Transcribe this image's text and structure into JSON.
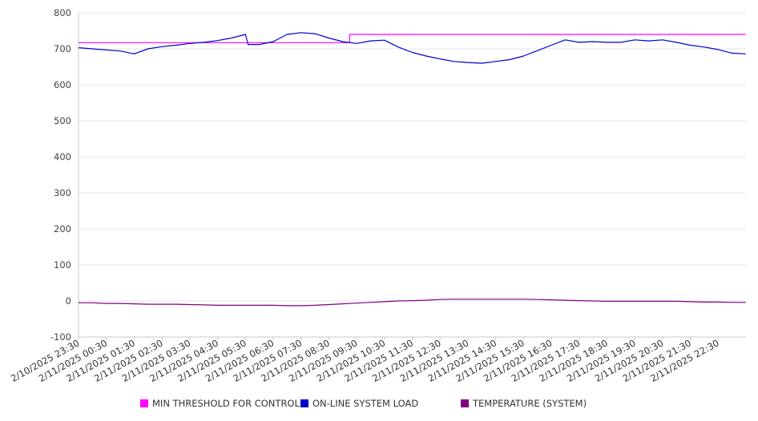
{
  "chart_data": {
    "type": "line",
    "title": "",
    "xlabel": "",
    "ylabel": "",
    "ylim": [
      -100,
      800
    ],
    "yticks": [
      800,
      700,
      600,
      500,
      400,
      300,
      200,
      100,
      0,
      -100
    ],
    "grid": true,
    "legend_position": "bottom",
    "categories": [
      "2/10/2025 23:30",
      "2/11/2025 00:30",
      "2/11/2025 01:30",
      "2/11/2025 02:30",
      "2/11/2025 03:30",
      "2/11/2025 04:30",
      "2/11/2025 05:30",
      "2/11/2025 06:30",
      "2/11/2025 07:30",
      "2/11/2025 08:30",
      "2/11/2025 09:30",
      "2/11/2025 10:30",
      "2/11/2025 11:30",
      "2/11/2025 12:30",
      "2/11/2025 13:30",
      "2/11/2025 14:30",
      "2/11/2025 15:30",
      "2/11/2025 16:30",
      "2/11/2025 17:30",
      "2/11/2025 18:30",
      "2/11/2025 19:30",
      "2/11/2025 20:30",
      "2/11/2025 21:30",
      "2/11/2025 22:30"
    ],
    "x_points": [
      0,
      0.5,
      1,
      1.5,
      2,
      2.5,
      3,
      3.5,
      4,
      4.5,
      5,
      5.5,
      6,
      6.1,
      6.5,
      7,
      7.5,
      8,
      8.5,
      9,
      9.5,
      10,
      10.5,
      11,
      11.5,
      12,
      12.5,
      13,
      13.5,
      14,
      14.5,
      15,
      15.5,
      16,
      16.5,
      17,
      17.5,
      18,
      18.5,
      19,
      19.5,
      20,
      20.5,
      21,
      21.5,
      22,
      22.5,
      23,
      23.5,
      23.99
    ],
    "series": [
      {
        "name": "MIN THRESHOLD FOR CONTROL",
        "color": "#ff00ff",
        "x": [
          0,
          9.75,
          9.75,
          23.99
        ],
        "values": [
          717,
          717,
          740,
          740
        ]
      },
      {
        "name": "ON-LINE SYSTEM LOAD",
        "color": "#0000cc",
        "x": [
          0,
          0.5,
          1,
          1.5,
          2,
          2.5,
          3,
          3.5,
          4,
          4.5,
          5,
          5.5,
          6,
          6.1,
          6.5,
          7,
          7.5,
          8,
          8.5,
          9,
          9.5,
          10,
          10.5,
          11,
          11.5,
          12,
          12.5,
          13,
          13.5,
          14,
          14.5,
          15,
          15.5,
          16,
          16.5,
          17,
          17.5,
          18,
          18.5,
          19,
          19.5,
          20,
          20.5,
          21,
          21.5,
          22,
          22.5,
          23,
          23.5,
          23.99
        ],
        "values": [
          703,
          700,
          697,
          694,
          686,
          700,
          706,
          710,
          715,
          718,
          723,
          730,
          740,
          712,
          712,
          720,
          740,
          745,
          742,
          730,
          720,
          715,
          722,
          724,
          705,
          690,
          680,
          672,
          665,
          662,
          660,
          665,
          670,
          680,
          695,
          710,
          725,
          718,
          720,
          718,
          718,
          725,
          722,
          725,
          718,
          710,
          705,
          698,
          688,
          686
        ]
      },
      {
        "name": "TEMPERATURE (SYSTEM)",
        "color": "#800080",
        "x": [
          0,
          0.5,
          1,
          1.5,
          2,
          2.5,
          3,
          3.5,
          4,
          4.5,
          5,
          5.5,
          6,
          6.1,
          6.5,
          7,
          7.5,
          8,
          8.5,
          9,
          9.5,
          10,
          10.5,
          11,
          11.5,
          12,
          12.5,
          13,
          13.5,
          14,
          14.5,
          15,
          15.5,
          16,
          16.5,
          17,
          17.5,
          18,
          18.5,
          19,
          19.5,
          20,
          20.5,
          21,
          21.5,
          22,
          22.5,
          23,
          23.5,
          23.99
        ],
        "values": [
          -5,
          -5,
          -7,
          -7,
          -8,
          -9,
          -9,
          -9,
          -10,
          -11,
          -12,
          -12,
          -12,
          -12,
          -12,
          -12,
          -13,
          -13,
          -12,
          -10,
          -8,
          -6,
          -4,
          -2,
          0,
          1,
          2,
          4,
          5,
          5,
          5,
          5,
          5,
          5,
          4,
          3,
          2,
          1,
          0,
          -1,
          -1,
          -1,
          -1,
          -1,
          -1,
          -2,
          -3,
          -3,
          -4,
          -4
        ]
      }
    ]
  }
}
